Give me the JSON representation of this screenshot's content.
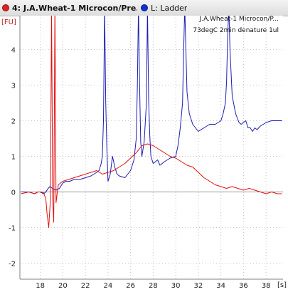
{
  "tabs": {
    "sample": {
      "number": "4: ",
      "label": "J.A.Wheat-1 Microcon/Pre...",
      "color": "#e02020"
    },
    "ladder": {
      "label": "L: Ladder",
      "color": "#1030d0"
    }
  },
  "chart_data": {
    "type": "line",
    "ylabel": "[FU]",
    "xlabel": "[s]",
    "annotation_lines": [
      "J.A.Wheat-1 Microcon/P...",
      "73degC 2min denature 1ul"
    ],
    "xlim": [
      16.2,
      39.5
    ],
    "ylim": [
      -2.45,
      4.95
    ],
    "x_ticks": [
      18,
      20,
      22,
      24,
      26,
      28,
      30,
      32,
      34,
      36,
      38
    ],
    "x_tick_labels": [
      "18",
      "20",
      "22",
      "24",
      "26",
      "28",
      "30",
      "32",
      "34",
      "36",
      "38"
    ],
    "y_ticks": [
      -2,
      -1,
      0,
      1,
      2,
      3,
      4
    ],
    "y_tick_labels": [
      "-2",
      "-1",
      "0",
      "1",
      "2",
      "3",
      "4"
    ],
    "grid": true,
    "series": [
      {
        "color": "#1c1cb4",
        "x": [
          16.3,
          17.0,
          17.5,
          17.8,
          18.0,
          18.3,
          18.5,
          18.7,
          18.85,
          19.0,
          19.15,
          19.4,
          19.7,
          20.0,
          20.3,
          20.6,
          21.0,
          21.5,
          22.0,
          22.5,
          23.0,
          23.2,
          23.4,
          23.5,
          23.6,
          23.7,
          23.8,
          23.9,
          24.0,
          24.2,
          24.4,
          24.6,
          24.8,
          25.0,
          25.5,
          26.0,
          26.3,
          26.5,
          26.6,
          26.7,
          26.8,
          26.9,
          27.0,
          27.1,
          27.2,
          27.4,
          27.5,
          27.6,
          27.7,
          27.8,
          28.0,
          28.2,
          28.4,
          28.6,
          29.0,
          29.5,
          30.0,
          30.2,
          30.4,
          30.6,
          30.7,
          30.8,
          30.9,
          31.0,
          31.2,
          31.5,
          32.0,
          32.5,
          33.0,
          33.5,
          34.0,
          34.2,
          34.4,
          34.5,
          34.6,
          34.7,
          34.8,
          35.0,
          35.3,
          35.6,
          35.8,
          36.0,
          36.2,
          36.4,
          36.6,
          36.8,
          37.0,
          37.2,
          37.5,
          38.0,
          38.5,
          39.0,
          39.4
        ],
        "y": [
          0.0,
          0.0,
          -0.05,
          0.0,
          0.0,
          -0.05,
          0.0,
          0.1,
          0.15,
          0.12,
          0.08,
          0.05,
          0.1,
          0.25,
          0.3,
          0.3,
          0.35,
          0.35,
          0.4,
          0.45,
          0.55,
          0.6,
          0.8,
          1.0,
          2.0,
          5.2,
          2.5,
          1.2,
          0.3,
          0.5,
          1.0,
          0.7,
          0.5,
          0.45,
          0.4,
          0.6,
          0.9,
          1.5,
          3.0,
          5.2,
          3.0,
          1.4,
          1.0,
          1.2,
          1.4,
          2.5,
          5.2,
          2.6,
          1.6,
          1.0,
          0.8,
          0.85,
          0.9,
          0.75,
          0.85,
          0.95,
          1.0,
          1.3,
          1.8,
          2.5,
          4.0,
          5.2,
          4.0,
          2.8,
          2.2,
          1.9,
          1.7,
          1.8,
          1.9,
          1.9,
          2.0,
          2.2,
          2.5,
          3.1,
          4.4,
          5.2,
          4.0,
          2.7,
          2.2,
          1.95,
          1.9,
          1.95,
          2.0,
          1.8,
          1.8,
          1.7,
          1.8,
          1.75,
          1.85,
          1.95,
          2.0,
          2.0,
          2.0
        ]
      },
      {
        "color": "#e01010",
        "x": [
          16.3,
          17.0,
          17.5,
          17.8,
          18.0,
          18.3,
          18.5,
          18.6,
          18.75,
          18.9,
          19.0,
          19.1,
          19.2,
          19.3,
          19.4,
          19.6,
          20.0,
          20.5,
          21.0,
          21.5,
          22.0,
          22.5,
          23.0,
          23.5,
          24.0,
          24.5,
          25.0,
          25.5,
          26.0,
          26.5,
          27.0,
          27.5,
          28.0,
          28.5,
          29.0,
          29.5,
          30.0,
          30.5,
          31.0,
          31.5,
          32.0,
          32.5,
          33.0,
          33.5,
          34.0,
          34.5,
          35.0,
          35.5,
          36.0,
          36.5,
          37.0,
          37.5,
          38.0,
          38.5,
          39.0,
          39.4
        ],
        "y": [
          -0.05,
          0.0,
          -0.05,
          0.0,
          0.0,
          -0.02,
          -0.2,
          -0.6,
          -1.0,
          -0.2,
          5.2,
          -0.2,
          -0.85,
          5.2,
          -0.3,
          0.2,
          0.3,
          0.35,
          0.4,
          0.45,
          0.5,
          0.55,
          0.6,
          0.5,
          0.55,
          0.6,
          0.7,
          0.8,
          0.95,
          1.1,
          1.3,
          1.35,
          1.3,
          1.2,
          1.1,
          1.0,
          0.95,
          0.85,
          0.75,
          0.7,
          0.55,
          0.4,
          0.3,
          0.2,
          0.15,
          0.1,
          0.15,
          0.1,
          0.05,
          0.1,
          0.05,
          0.0,
          -0.05,
          0.0,
          -0.05,
          -0.05
        ]
      }
    ]
  }
}
